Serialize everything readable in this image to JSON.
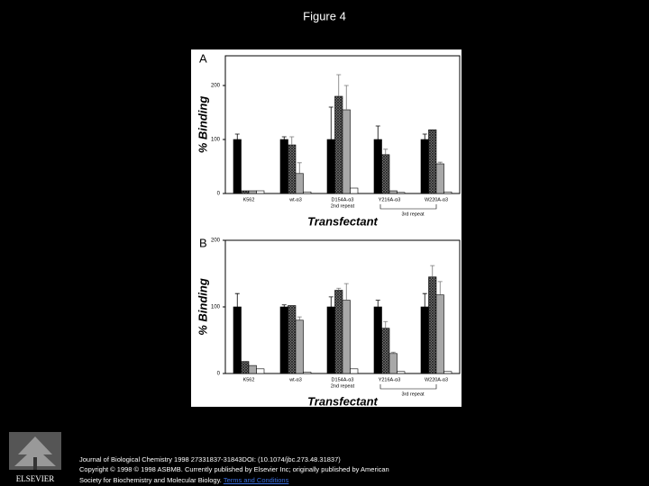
{
  "title": "Figure 4",
  "chart_data": [
    {
      "type": "bar",
      "panel": "A",
      "ylabel": "% Binding",
      "xlabel": "Transfectant",
      "categories": [
        "K562",
        "wt-α3",
        "D154A-α3",
        "Y216A-α3",
        "W220A-α3"
      ],
      "ylim": [
        0,
        255
      ],
      "yticks": [
        0,
        100,
        200
      ],
      "annotations": [
        "2nd repeat",
        "3rd repeat"
      ],
      "series": [
        {
          "color": "#000000",
          "values": [
            100,
            100,
            100,
            100,
            100
          ],
          "errors": [
            10,
            5,
            60,
            25,
            10
          ]
        },
        {
          "color": "#555555",
          "hatch": true,
          "values": [
            5,
            90,
            180,
            72,
            118
          ],
          "errors": [
            0,
            15,
            40,
            10,
            0
          ]
        },
        {
          "color": "#a8a8a8",
          "values": [
            5,
            37,
            155,
            5,
            55
          ],
          "errors": [
            0,
            20,
            45,
            0,
            3
          ]
        },
        {
          "color": "#ffffff",
          "values": [
            5,
            3,
            10,
            2,
            3
          ],
          "errors": [
            0,
            0,
            0,
            0,
            0
          ]
        }
      ]
    },
    {
      "type": "bar",
      "panel": "B",
      "ylabel": "% Binding",
      "xlabel": "Transfectant",
      "categories": [
        "K562",
        "wt-α3",
        "D154A-α3",
        "Y216A-α3",
        "W220A-α3"
      ],
      "ylim": [
        0,
        200
      ],
      "yticks": [
        0,
        100,
        200
      ],
      "annotations": [
        "2nd repeat",
        "3rd repeat"
      ],
      "series": [
        {
          "color": "#000000",
          "values": [
            100,
            100,
            100,
            100,
            100
          ],
          "errors": [
            20,
            3,
            15,
            10,
            20
          ]
        },
        {
          "color": "#555555",
          "hatch": true,
          "values": [
            18,
            102,
            125,
            68,
            145
          ],
          "errors": [
            0,
            0,
            3,
            10,
            17
          ]
        },
        {
          "color": "#a8a8a8",
          "values": [
            12,
            80,
            110,
            30,
            118
          ],
          "errors": [
            0,
            5,
            25,
            2,
            20
          ]
        },
        {
          "color": "#ffffff",
          "values": [
            7,
            2,
            7,
            3,
            3
          ],
          "errors": [
            0,
            0,
            0,
            0,
            0
          ]
        }
      ]
    }
  ],
  "footer": {
    "citation": "Journal of Biological Chemistry 1998 27331837-31843DOI: (10.1074/jbc.273.48.31837)",
    "copyright": [
      "Copyright © 1998 © 1998 ASBMB. Currently published by Elsevier Inc; originally published by American",
      "Society for Biochemistry and Molecular Biology."
    ],
    "link": "Terms and Conditions",
    "publisher": "ELSEVIER"
  }
}
